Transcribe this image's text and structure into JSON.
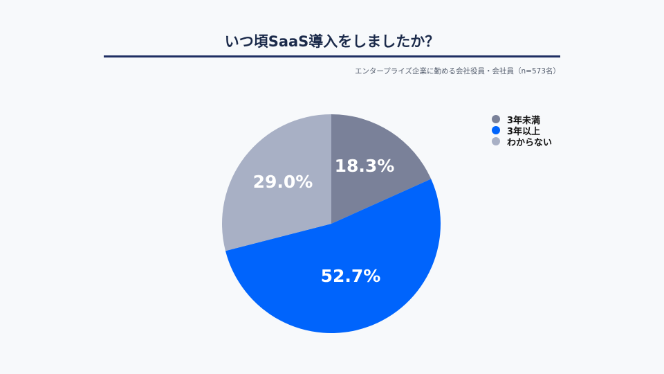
{
  "chart_data": {
    "type": "pie",
    "title": "いつ頃SaaS導入をしましたか？",
    "subtitle": "エンタープライズ企業に勤める会社役員・会社員（n=573名）",
    "legend_position": "top-right",
    "slices": [
      {
        "label": "3年未満",
        "value": 18.3,
        "display": "18.3%",
        "color": "#7a8199"
      },
      {
        "label": "3年以上",
        "value": 52.7,
        "display": "52.7%",
        "color": "#0064fc"
      },
      {
        "label": "わからない",
        "value": 29.0,
        "display": "29.0%",
        "color": "#a8b0c5"
      }
    ]
  }
}
